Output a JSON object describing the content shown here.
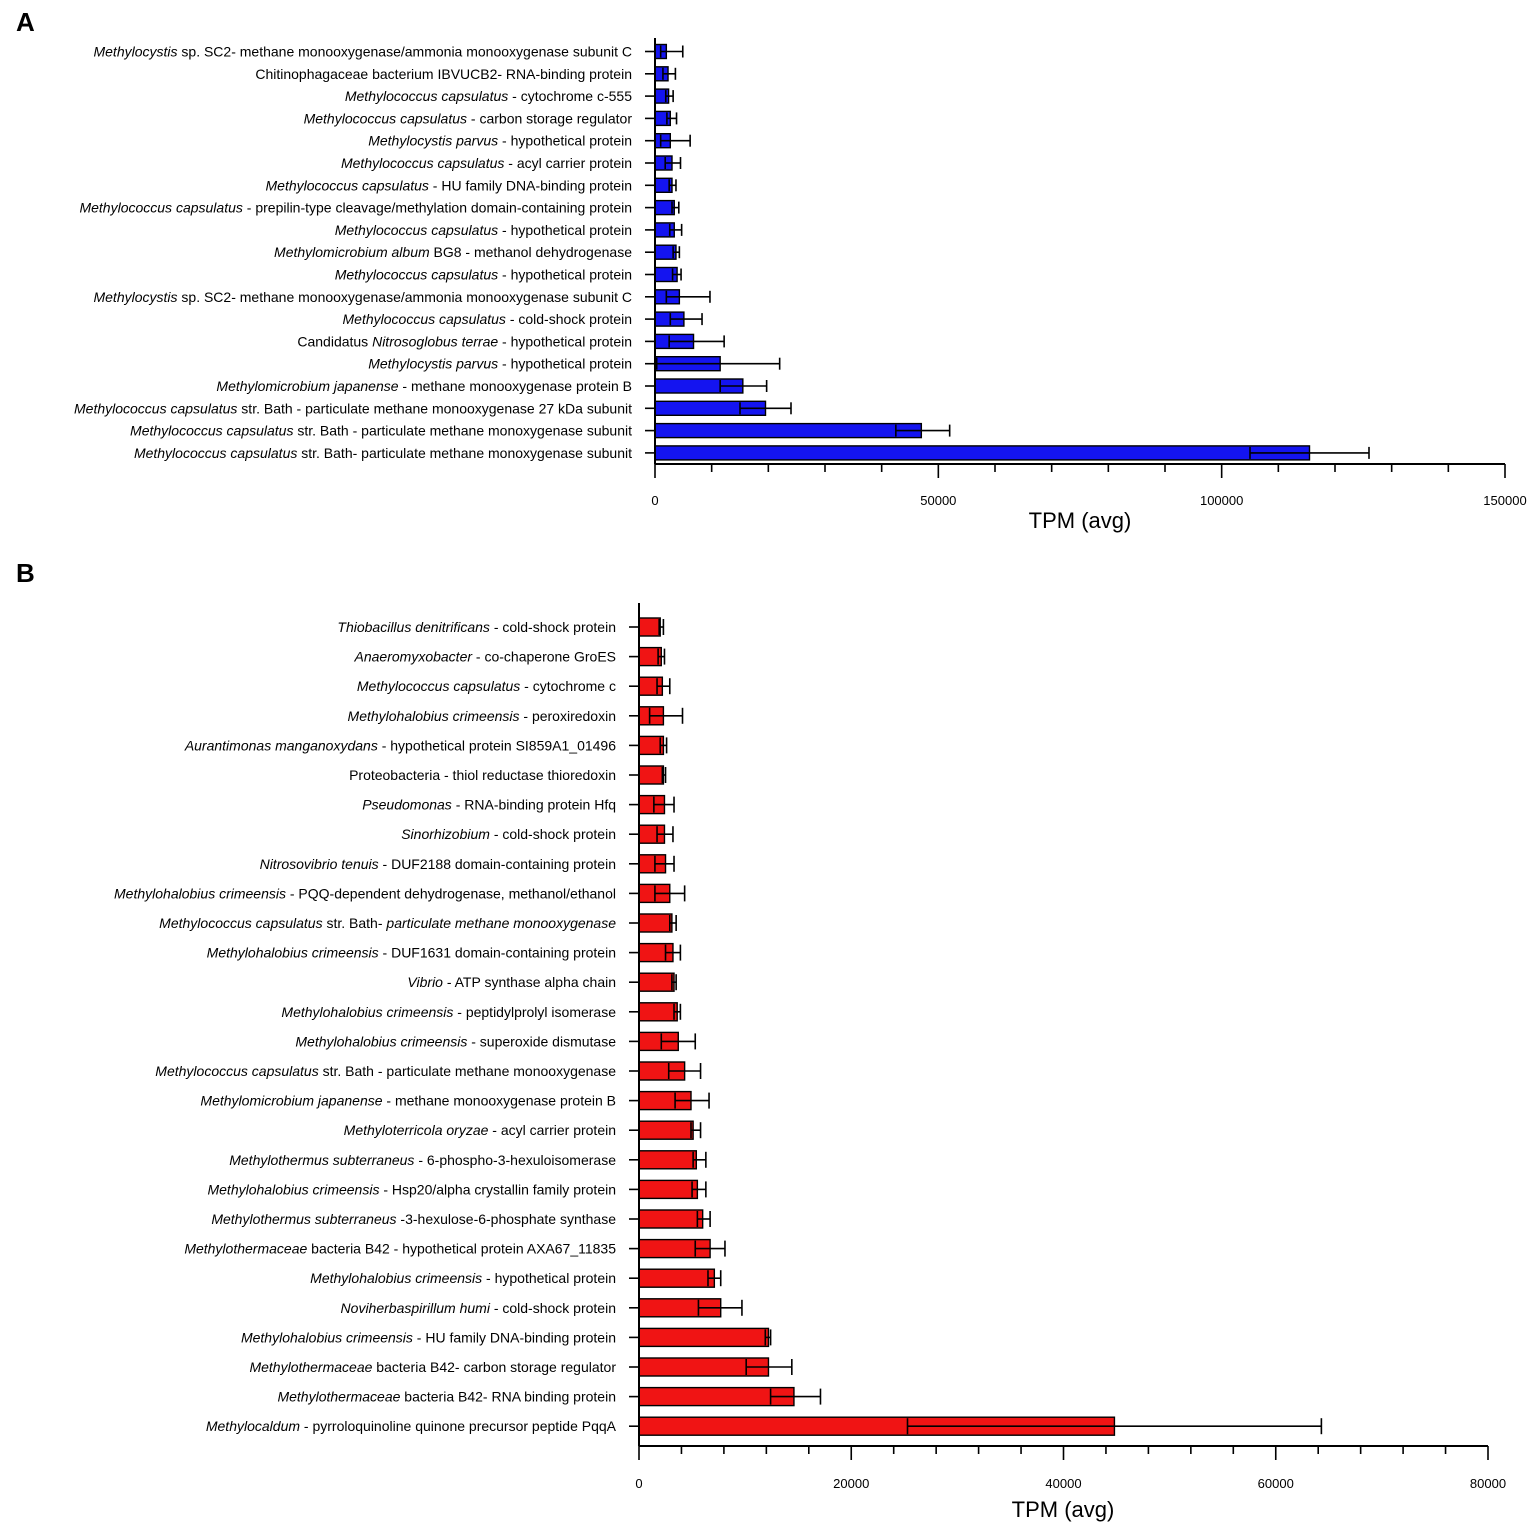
{
  "chart_data": [
    {
      "panel": "A",
      "type": "bar",
      "orientation": "horizontal",
      "bar_color": "#1414f0",
      "xlabel": "TPM (avg)",
      "xlim": [
        0,
        150000
      ],
      "xticks": [
        "0",
        "50000",
        "100000",
        "150000"
      ],
      "categories": [
        [
          {
            "t": "Methylocystis",
            "i": true
          },
          {
            "t": " sp. SC2- methane monooxygenase/ammonia monooxygenase subunit C",
            "i": false
          }
        ],
        [
          {
            "t": "Chitinophagaceae bacterium IBVUCB2- RNA-binding protein",
            "i": false
          }
        ],
        [
          {
            "t": "Methylococcus capsulatus",
            "i": true
          },
          {
            "t": " - cytochrome c-555",
            "i": false
          }
        ],
        [
          {
            "t": "Methylococcus capsulatus",
            "i": true
          },
          {
            "t": " - carbon storage regulator",
            "i": false
          }
        ],
        [
          {
            "t": "Methylocystis parvus",
            "i": true
          },
          {
            "t": " - hypothetical protein",
            "i": false
          }
        ],
        [
          {
            "t": "Methylococcus capsulatus",
            "i": true
          },
          {
            "t": " - acyl carrier protein",
            "i": false
          }
        ],
        [
          {
            "t": "Methylococcus capsulatus",
            "i": true
          },
          {
            "t": " - HU family DNA-binding protein",
            "i": false
          }
        ],
        [
          {
            "t": "Methylococcus capsulatus",
            "i": true
          },
          {
            "t": " - prepilin-type cleavage/methylation domain-containing protein",
            "i": false
          }
        ],
        [
          {
            "t": "Methylococcus capsulatus",
            "i": true
          },
          {
            "t": " - hypothetical protein",
            "i": false
          }
        ],
        [
          {
            "t": "Methylomicrobium album",
            "i": true
          },
          {
            "t": " BG8 - methanol dehydrogenase",
            "i": false
          }
        ],
        [
          {
            "t": "Methylococcus capsulatus",
            "i": true
          },
          {
            "t": " - hypothetical protein",
            "i": false
          }
        ],
        [
          {
            "t": "Methylocystis",
            "i": true
          },
          {
            "t": " sp. SC2- methane monooxygenase/ammonia monooxygenase subunit C",
            "i": false
          }
        ],
        [
          {
            "t": "Methylococcus capsulatus",
            "i": true
          },
          {
            "t": " - cold-shock protein",
            "i": false
          }
        ],
        [
          {
            "t": "Candidatus ",
            "i": false
          },
          {
            "t": "Nitrosoglobus terrae",
            "i": true
          },
          {
            "t": " - hypothetical protein",
            "i": false
          }
        ],
        [
          {
            "t": "Methylocystis parvus",
            "i": true
          },
          {
            "t": " - hypothetical protein",
            "i": false
          }
        ],
        [
          {
            "t": "Methylomicrobium japanense",
            "i": true
          },
          {
            "t": " - methane monooxygenase protein B",
            "i": false
          }
        ],
        [
          {
            "t": "Methylococcus capsulatus",
            "i": true
          },
          {
            "t": " str. Bath - particulate methane monooxygenase 27 kDa subunit",
            "i": false
          }
        ],
        [
          {
            "t": "Methylococcus capsulatus",
            "i": true
          },
          {
            "t": " str. Bath - particulate methane monoxygenase subunit",
            "i": false
          }
        ],
        [
          {
            "t": "Methylococcus capsulatus",
            "i": true
          },
          {
            "t": " str. Bath- particulate methane monoxygenase subunit",
            "i": false
          }
        ]
      ],
      "values": [
        2000,
        2300,
        2400,
        2700,
        2700,
        3000,
        3000,
        3400,
        3400,
        3700,
        3900,
        4300,
        5100,
        6800,
        11500,
        15500,
        19500,
        47000,
        115500
      ],
      "err_low": [
        1000,
        1400,
        1900,
        2100,
        1000,
        1800,
        2500,
        3000,
        2600,
        3200,
        3100,
        2000,
        2700,
        2500,
        300,
        11500,
        15000,
        42500,
        105000
      ],
      "err_high": [
        4900,
        3600,
        3200,
        3800,
        6200,
        4500,
        3700,
        4200,
        4700,
        4300,
        4600,
        9700,
        8300,
        12200,
        22000,
        19700,
        24000,
        52000,
        126000
      ]
    },
    {
      "panel": "B",
      "type": "bar",
      "orientation": "horizontal",
      "bar_color": "#f01414",
      "xlabel": "TPM (avg)",
      "xlim": [
        0,
        80000
      ],
      "xticks": [
        "0",
        "20000",
        "40000",
        "60000",
        "80000"
      ],
      "categories": [
        [
          {
            "t": "Thiobacillus denitrificans",
            "i": true
          },
          {
            "t": " - cold-shock protein",
            "i": false
          }
        ],
        [
          {
            "t": "Anaeromyxobacter",
            "i": true
          },
          {
            "t": " - co-chaperone GroES",
            "i": false
          }
        ],
        [
          {
            "t": "Methylococcus capsulatus",
            "i": true
          },
          {
            "t": " - cytochrome c",
            "i": false
          }
        ],
        [
          {
            "t": "Methylohalobius crimeensis",
            "i": true
          },
          {
            "t": " - peroxiredoxin",
            "i": false
          }
        ],
        [
          {
            "t": "Aurantimonas manganoxydans",
            "i": true
          },
          {
            "t": " - hypothetical protein SI859A1_01496",
            "i": false
          }
        ],
        [
          {
            "t": "Proteobacteria - thiol reductase thioredoxin",
            "i": false
          }
        ],
        [
          {
            "t": "Pseudomonas",
            "i": true
          },
          {
            "t": " - RNA-binding protein Hfq",
            "i": false
          }
        ],
        [
          {
            "t": "Sinorhizobium",
            "i": true
          },
          {
            "t": " - cold-shock protein",
            "i": false
          }
        ],
        [
          {
            "t": "Nitrosovibrio tenuis",
            "i": true
          },
          {
            "t": " - DUF2188 domain-containing protein",
            "i": false
          }
        ],
        [
          {
            "t": "Methylohalobius crimeensis",
            "i": true
          },
          {
            "t": " - PQQ-dependent dehydrogenase, methanol/ethanol",
            "i": false
          }
        ],
        [
          {
            "t": "Methylococcus capsulatus",
            "i": true
          },
          {
            "t": " str. Bath- ",
            "i": false
          },
          {
            "t": "particulate methane monooxygenase",
            "i": true
          }
        ],
        [
          {
            "t": "Methylohalobius crimeensis",
            "i": true
          },
          {
            "t": " - DUF1631 domain-containing protein",
            "i": false
          }
        ],
        [
          {
            "t": "Vibrio",
            "i": true
          },
          {
            "t": " - ATP synthase alpha chain",
            "i": false
          }
        ],
        [
          {
            "t": "Methylohalobius crimeensis",
            "i": true
          },
          {
            "t": " - peptidylprolyl isomerase",
            "i": false
          }
        ],
        [
          {
            "t": "Methylohalobius crimeensis",
            "i": true
          },
          {
            "t": " - superoxide dismutase",
            "i": false
          }
        ],
        [
          {
            "t": "Methylococcus capsulatus",
            "i": true
          },
          {
            "t": " str. Bath - particulate methane monooxygenase",
            "i": false
          }
        ],
        [
          {
            "t": "Methylomicrobium japanense",
            "i": true
          },
          {
            "t": " - methane monooxygenase protein B",
            "i": false
          }
        ],
        [
          {
            "t": "Methyloterricola oryzae",
            "i": true
          },
          {
            "t": " - acyl carrier protein",
            "i": false
          }
        ],
        [
          {
            "t": "Methylothermus subterraneus",
            "i": true
          },
          {
            "t": " - 6-phospho-3-hexuloisomerase",
            "i": false
          }
        ],
        [
          {
            "t": "Methylohalobius crimeensis",
            "i": true
          },
          {
            "t": " - Hsp20/alpha crystallin family protein",
            "i": false
          }
        ],
        [
          {
            "t": "Methylothermus subterraneus",
            "i": true
          },
          {
            "t": " -3-hexulose-6-phosphate synthase",
            "i": false
          }
        ],
        [
          {
            "t": "Methylothermaceae",
            "i": true
          },
          {
            "t": " bacteria B42 - hypothetical protein AXA67_11835",
            "i": false
          }
        ],
        [
          {
            "t": "Methylohalobius crimeensis",
            "i": true
          },
          {
            "t": " - hypothetical protein",
            "i": false
          }
        ],
        [
          {
            "t": "Noviherbaspirillum humi",
            "i": true
          },
          {
            "t": " - cold-shock protein",
            "i": false
          }
        ],
        [
          {
            "t": "Methylohalobius crimeensis",
            "i": true
          },
          {
            "t": " - HU family DNA-binding protein",
            "i": false
          }
        ],
        [
          {
            "t": "Methylothermaceae",
            "i": true
          },
          {
            "t": " bacteria B42- carbon storage regulator",
            "i": false
          }
        ],
        [
          {
            "t": "Methylothermaceae",
            "i": true
          },
          {
            "t": " bacteria B42- RNA binding protein",
            "i": false
          }
        ],
        [
          {
            "t": "Methylocaldum",
            "i": true
          },
          {
            "t": " - pyrroloquinoline quinone precursor peptide PqqA",
            "i": false
          }
        ]
      ],
      "values": [
        2000,
        2100,
        2200,
        2300,
        2300,
        2300,
        2400,
        2400,
        2500,
        2900,
        3100,
        3200,
        3300,
        3600,
        3700,
        4300,
        4900,
        5100,
        5400,
        5500,
        6000,
        6700,
        7100,
        7700,
        12200,
        12200,
        14600,
        44800
      ],
      "err_low": [
        1900,
        1800,
        1700,
        1000,
        2000,
        2200,
        1400,
        1700,
        1500,
        1500,
        2900,
        2500,
        3100,
        3300,
        2100,
        2800,
        3400,
        4900,
        5100,
        5000,
        5500,
        5300,
        6500,
        5600,
        11900,
        10100,
        12400,
        25300
      ],
      "err_high": [
        2300,
        2400,
        2900,
        4100,
        2600,
        2500,
        3300,
        3200,
        3300,
        4300,
        3500,
        3900,
        3500,
        3900,
        5300,
        5800,
        6600,
        5800,
        6300,
        6300,
        6700,
        8100,
        7700,
        9700,
        12400,
        14400,
        17100,
        64300
      ]
    }
  ]
}
